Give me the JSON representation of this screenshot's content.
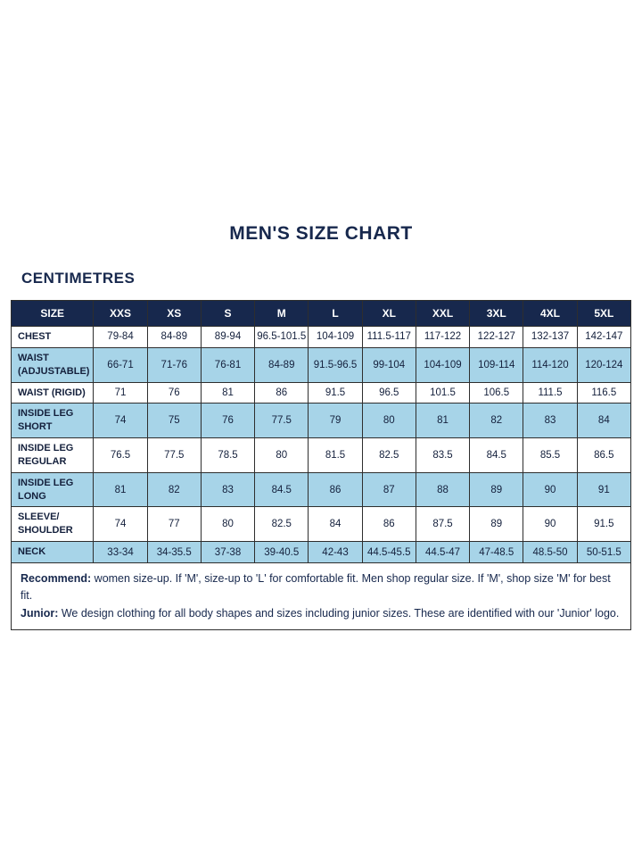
{
  "page": {
    "title": "MEN'S SIZE CHART",
    "subtitle": "CENTIMETRES"
  },
  "colors": {
    "navy": "#17284d",
    "light_blue": "#a7d4e8",
    "border": "#2e2e2e"
  },
  "table": {
    "headers": [
      "SIZE",
      "XXS",
      "XS",
      "S",
      "M",
      "L",
      "XL",
      "XXL",
      "3XL",
      "4XL",
      "5XL"
    ],
    "rows": [
      {
        "label": "CHEST",
        "values": [
          "79-84",
          "84-89",
          "89-94",
          "96.5-101.5",
          "104-109",
          "111.5-117",
          "117-122",
          "122-127",
          "132-137",
          "142-147"
        ]
      },
      {
        "label": "WAIST (ADJUSTABLE)",
        "values": [
          "66-71",
          "71-76",
          "76-81",
          "84-89",
          "91.5-96.5",
          "99-104",
          "104-109",
          "109-114",
          "114-120",
          "120-124"
        ]
      },
      {
        "label": "WAIST (RIGID)",
        "values": [
          "71",
          "76",
          "81",
          "86",
          "91.5",
          "96.5",
          "101.5",
          "106.5",
          "111.5",
          "116.5"
        ]
      },
      {
        "label": "INSIDE LEG SHORT",
        "values": [
          "74",
          "75",
          "76",
          "77.5",
          "79",
          "80",
          "81",
          "82",
          "83",
          "84"
        ]
      },
      {
        "label": "INSIDE LEG REGULAR",
        "values": [
          "76.5",
          "77.5",
          "78.5",
          "80",
          "81.5",
          "82.5",
          "83.5",
          "84.5",
          "85.5",
          "86.5"
        ]
      },
      {
        "label": "INSIDE LEG LONG",
        "values": [
          "81",
          "82",
          "83",
          "84.5",
          "86",
          "87",
          "88",
          "89",
          "90",
          "91"
        ]
      },
      {
        "label": "SLEEVE/SHOULDER",
        "values": [
          "74",
          "77",
          "80",
          "82.5",
          "84",
          "86",
          "87.5",
          "89",
          "90",
          "91.5"
        ]
      },
      {
        "label": "NECK",
        "values": [
          "33-34",
          "34-35.5",
          "37-38",
          "39-40.5",
          "42-43",
          "44.5-45.5",
          "44.5-47",
          "47-48.5",
          "48.5-50",
          "50-51.5"
        ]
      }
    ]
  },
  "notes": [
    {
      "bold": "Recommend:",
      "text": " women size-up. If 'M', size-up to 'L' for comfortable fit. Men shop regular size. If 'M', shop size 'M' for best fit."
    },
    {
      "bold": "Junior:",
      "text": " We design clothing for all body shapes and sizes including junior sizes. These are identified with our 'Junior' logo."
    }
  ]
}
